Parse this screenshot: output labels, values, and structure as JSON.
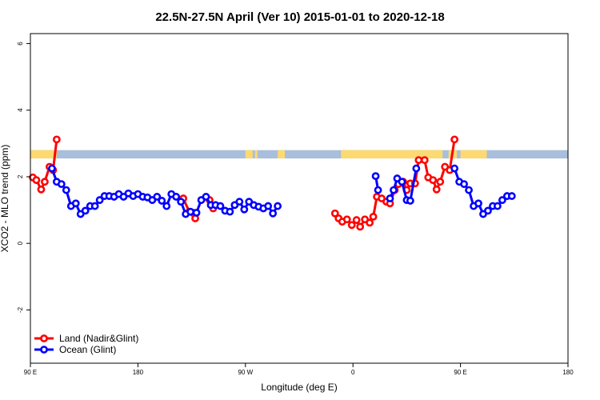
{
  "chart_data": {
    "type": "line",
    "title": "22.5N-27.5N April (Ver 10)   2015-01-01 to 2020-12-18",
    "xlabel": "Longitude (deg E)",
    "ylabel": "XCO2 - MLO trend (ppm)",
    "xlim": [
      90,
      450
    ],
    "ylim": [
      -3.6,
      6.3
    ],
    "x_ticks": [
      {
        "value": 90,
        "label": "90 E"
      },
      {
        "value": 180,
        "label": "180"
      },
      {
        "value": 270,
        "label": "90 W"
      },
      {
        "value": 360,
        "label": "0"
      },
      {
        "value": 450,
        "label": "90 E"
      },
      {
        "value": 540,
        "label": "180"
      }
    ],
    "y_ticks": [
      {
        "value": -2,
        "label": "-2"
      },
      {
        "value": 0,
        "label": "0"
      },
      {
        "value": 2,
        "label": "2"
      },
      {
        "value": 4,
        "label": "4"
      },
      {
        "value": 6,
        "label": "6"
      }
    ],
    "x_scale_note": "longitude unwrapped: 90E to 180 to 90W to 0 to 90E to 180",
    "x_range_value": [
      90,
      540
    ],
    "mask_band": {
      "y_range": [
        2.55,
        2.8
      ],
      "ocean_color": "#a9bedb",
      "land_color": "#fcd971",
      "land_segments": [
        [
          90,
          112
        ],
        [
          270,
          276
        ],
        [
          278,
          280
        ],
        [
          297,
          303
        ],
        [
          350,
          435
        ],
        [
          440,
          447
        ],
        [
          450,
          472
        ]
      ]
    },
    "legend": {
      "position": "bottom-left",
      "entries": [
        {
          "name": "Land (Nadir&Glint)",
          "color": "#ff0000"
        },
        {
          "name": "Ocean (Glint)",
          "color": "#0000ff"
        }
      ]
    },
    "series": [
      {
        "name": "Land (Nadir&Glint)",
        "color": "#ff0000",
        "points": [
          [
            92,
            1.98
          ],
          [
            95,
            1.9
          ],
          [
            99,
            1.62
          ],
          [
            102,
            1.85
          ],
          [
            106,
            2.3
          ],
          [
            109,
            2.2
          ],
          [
            112,
            3.12
          ],
          [
            218,
            1.35
          ],
          [
            223,
            0.95
          ],
          [
            226,
            0.92
          ],
          [
            228,
            0.75
          ],
          [
            240,
            1.3
          ],
          [
            243,
            1.05
          ],
          [
            345,
            0.9
          ],
          [
            348,
            0.75
          ],
          [
            351,
            0.65
          ],
          [
            355,
            0.72
          ],
          [
            359,
            0.55
          ],
          [
            363,
            0.7
          ],
          [
            366,
            0.5
          ],
          [
            370,
            0.72
          ],
          [
            374,
            0.62
          ],
          [
            377,
            0.8
          ],
          [
            380,
            1.4
          ],
          [
            384,
            1.35
          ],
          [
            388,
            1.25
          ],
          [
            391,
            1.2
          ],
          [
            395,
            1.6
          ],
          [
            398,
            1.78
          ],
          [
            402,
            1.85
          ],
          [
            405,
            1.6
          ],
          [
            408,
            1.8
          ],
          [
            412,
            1.8
          ],
          [
            415,
            2.5
          ],
          [
            420,
            2.5
          ],
          [
            423,
            1.98
          ],
          [
            427,
            1.9
          ],
          [
            430,
            1.62
          ],
          [
            433,
            1.85
          ],
          [
            437,
            2.3
          ],
          [
            441,
            2.2
          ],
          [
            445,
            3.12
          ]
        ]
      },
      {
        "name": "Ocean (Glint)",
        "color": "#0000ff",
        "points": [
          [
            108,
            2.25
          ],
          [
            112,
            1.85
          ],
          [
            116,
            1.78
          ],
          [
            120,
            1.6
          ],
          [
            124,
            1.12
          ],
          [
            128,
            1.2
          ],
          [
            132,
            0.88
          ],
          [
            136,
            0.98
          ],
          [
            140,
            1.12
          ],
          [
            144,
            1.12
          ],
          [
            148,
            1.3
          ],
          [
            152,
            1.42
          ],
          [
            156,
            1.42
          ],
          [
            160,
            1.4
          ],
          [
            164,
            1.48
          ],
          [
            168,
            1.4
          ],
          [
            172,
            1.5
          ],
          [
            176,
            1.42
          ],
          [
            180,
            1.48
          ],
          [
            184,
            1.4
          ],
          [
            188,
            1.38
          ],
          [
            192,
            1.3
          ],
          [
            196,
            1.4
          ],
          [
            200,
            1.28
          ],
          [
            204,
            1.12
          ],
          [
            208,
            1.48
          ],
          [
            212,
            1.4
          ],
          [
            216,
            1.25
          ],
          [
            220,
            0.88
          ],
          [
            224,
            0.95
          ],
          [
            229,
            0.92
          ],
          [
            233,
            1.3
          ],
          [
            237,
            1.4
          ],
          [
            241,
            1.15
          ],
          [
            245,
            1.15
          ],
          [
            249,
            1.12
          ],
          [
            253,
            0.98
          ],
          [
            257,
            0.95
          ],
          [
            261,
            1.15
          ],
          [
            265,
            1.25
          ],
          [
            269,
            1.02
          ],
          [
            273,
            1.25
          ],
          [
            277,
            1.15
          ],
          [
            281,
            1.1
          ],
          [
            285,
            1.05
          ],
          [
            289,
            1.12
          ],
          [
            293,
            0.9
          ],
          [
            297,
            1.12
          ]
        ],
        "extra_points": [
          [
            379,
            2.02
          ],
          [
            381,
            1.6
          ],
          [
            391,
            1.35
          ],
          [
            394,
            1.6
          ],
          [
            397,
            1.95
          ],
          [
            401,
            1.85
          ],
          [
            405,
            1.3
          ],
          [
            408,
            1.28
          ],
          [
            413,
            2.25
          ],
          [
            445,
            2.25
          ],
          [
            449,
            1.85
          ],
          [
            453,
            1.78
          ],
          [
            457,
            1.6
          ],
          [
            461,
            1.12
          ],
          [
            465,
            1.2
          ],
          [
            469,
            0.88
          ],
          [
            473,
            0.98
          ],
          [
            477,
            1.12
          ],
          [
            481,
            1.12
          ],
          [
            485,
            1.3
          ],
          [
            489,
            1.42
          ],
          [
            493,
            1.42
          ]
        ]
      }
    ]
  }
}
